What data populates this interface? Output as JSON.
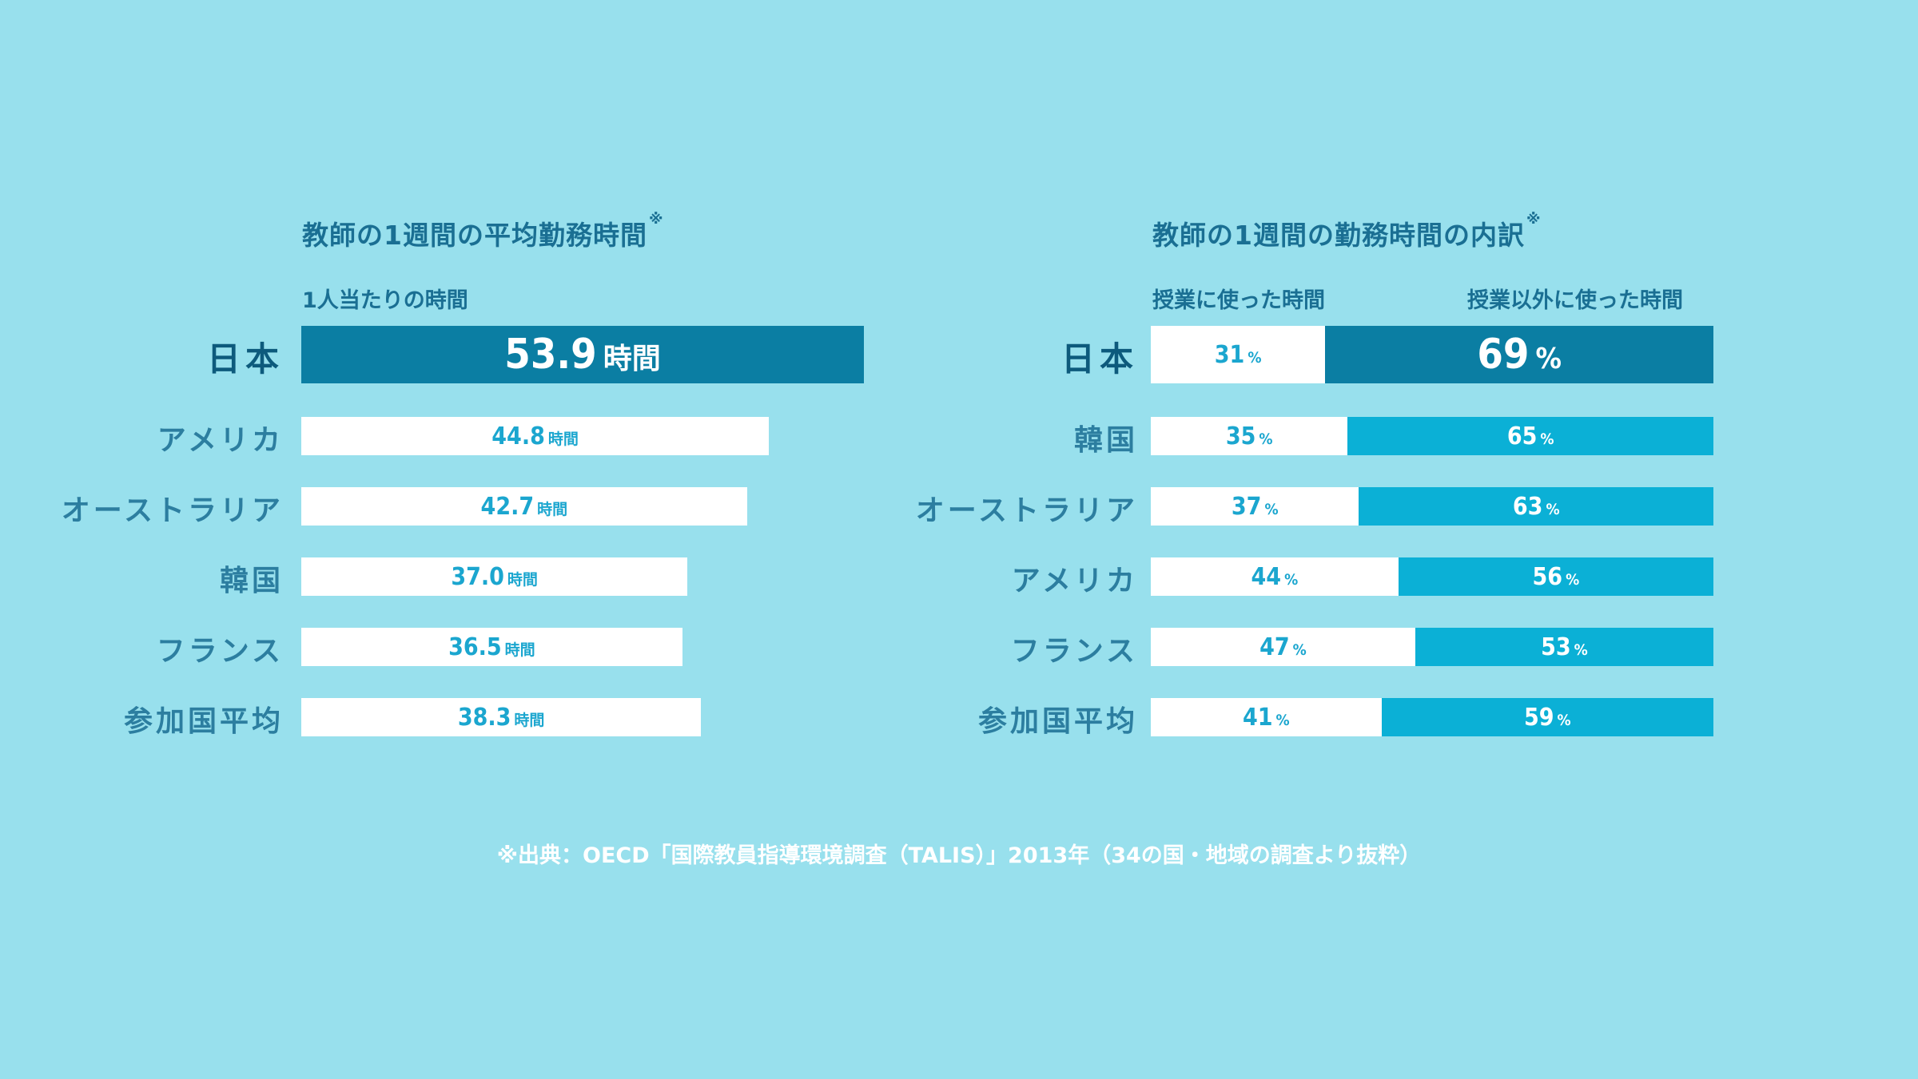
{
  "chart_data": [
    {
      "type": "bar",
      "title": "教師の1週間の平均勤務時間",
      "title_mark": "※",
      "subtitle": "1人当たりの時間",
      "unit": "時間",
      "categories": [
        "日本",
        "アメリカ",
        "オーストラリア",
        "韓国",
        "フランス",
        "参加国平均"
      ],
      "values": [
        53.9,
        44.8,
        42.7,
        37.0,
        36.5,
        38.3
      ],
      "value_labels": [
        "53.9",
        "44.8",
        "42.7",
        "37.0",
        "36.5",
        "38.3"
      ],
      "highlight_index": 0,
      "colors": {
        "highlight": "#0b7ea3",
        "default": "#ffffff",
        "text": "#1ba6cf"
      }
    },
    {
      "type": "bar",
      "stacked": true,
      "title": "教師の1週間の勤務時間の内訳",
      "title_mark": "※",
      "unit": "%",
      "categories": [
        "日本",
        "韓国",
        "オーストラリア",
        "アメリカ",
        "フランス",
        "参加国平均"
      ],
      "series": [
        {
          "name": "授業に使った時間",
          "values": [
            31,
            35,
            37,
            44,
            47,
            41
          ]
        },
        {
          "name": "授業以外に使った時間",
          "values": [
            69,
            65,
            63,
            56,
            53,
            59
          ]
        }
      ],
      "highlight_index": 0,
      "colors": {
        "first": "#ffffff",
        "second": "#0bb0d6",
        "highlight": "#0b7ea3"
      }
    }
  ],
  "footer": {
    "source": "※出典：OECD「国際教員指導環境調査（TALIS）」2013年（34の国・地域の調査より抜粋）"
  }
}
